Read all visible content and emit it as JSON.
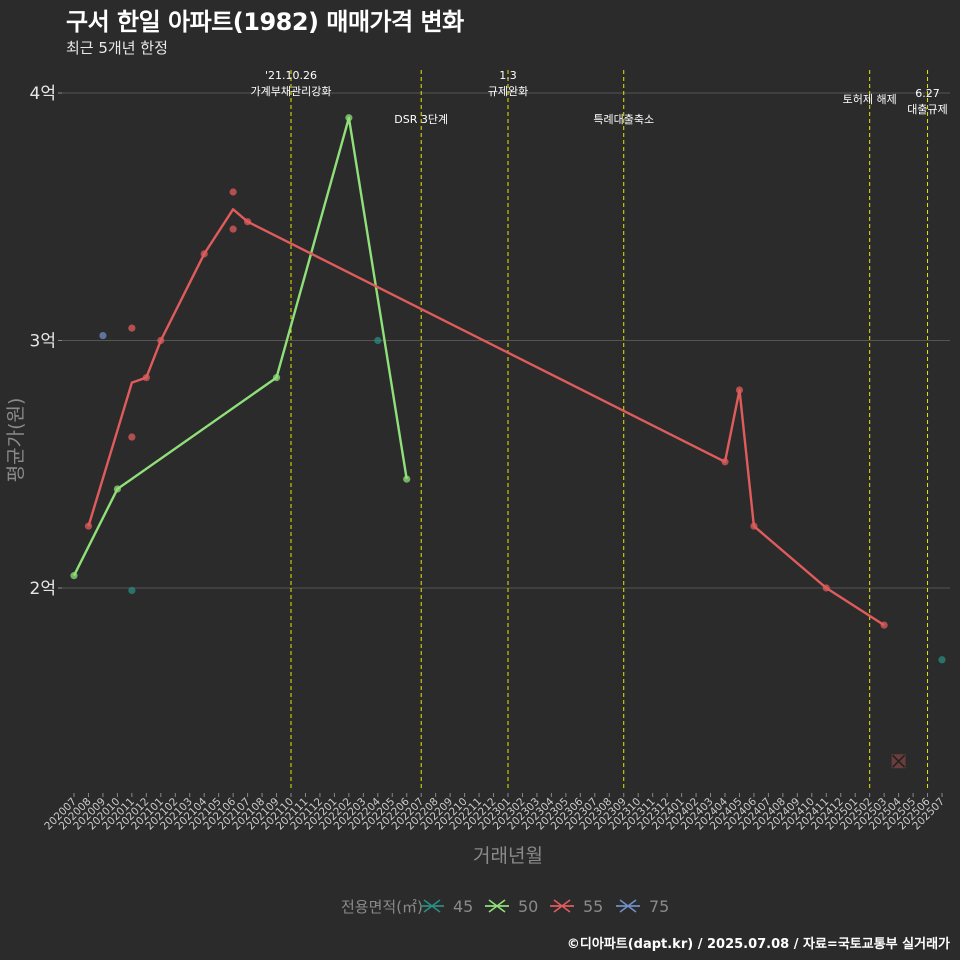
{
  "title": "구서 한일 아파트(1982) 매매가격 변화",
  "subtitle": "최근 5개년 한정",
  "caption": "©디아파트(dapt.kr) / 2025.07.08 / 자료=국토교통부 실거래가",
  "chart_data": {
    "type": "line",
    "xlabel": "거래년월",
    "ylabel": "평균가(원)",
    "ylim": [
      1.2,
      4.1
    ],
    "yticks": [
      2,
      3,
      4
    ],
    "ytick_labels": [
      "2억",
      "3억",
      "4억"
    ],
    "categories": [
      "202007",
      "202008",
      "202009",
      "202010",
      "202011",
      "202012",
      "202101",
      "202102",
      "202103",
      "202104",
      "202105",
      "202106",
      "202107",
      "202108",
      "202109",
      "202110",
      "202111",
      "202112",
      "202201",
      "202202",
      "202203",
      "202204",
      "202205",
      "202206",
      "202207",
      "202208",
      "202209",
      "202210",
      "202211",
      "202212",
      "202301",
      "202302",
      "202303",
      "202304",
      "202305",
      "202306",
      "202307",
      "202308",
      "202309",
      "202310",
      "202311",
      "202312",
      "202401",
      "202402",
      "202403",
      "202404",
      "202405",
      "202406",
      "202407",
      "202408",
      "202409",
      "202410",
      "202411",
      "202412",
      "202501",
      "202502",
      "202503",
      "202504",
      "202505",
      "202506",
      "202507"
    ],
    "events": [
      {
        "x": "202110",
        "label": "'21.10.26\n가계부채관리강화",
        "label_row": 1
      },
      {
        "x": "202207",
        "label": "DSR 3단계",
        "label_row": 2
      },
      {
        "x": "202301",
        "label": "1.3\n규제완화",
        "label_row": 1
      },
      {
        "x": "202309",
        "label": "특례대출축소",
        "label_row": 2
      },
      {
        "x": "202502",
        "label": "토허제 해제",
        "label_row": 1.5
      },
      {
        "x": "202506",
        "label": "6.27\n대출규제",
        "label_row": 3
      }
    ],
    "legend_title": "전용면적(㎡)",
    "series": [
      {
        "name": "45",
        "color": "#2a8c82",
        "line": [],
        "points": [
          [
            "202011",
            1.99
          ],
          [
            "202204",
            3.0
          ],
          [
            "202507",
            1.71
          ]
        ]
      },
      {
        "name": "50",
        "color": "#90e07a",
        "line": [
          [
            "202007",
            2.05
          ],
          [
            "202010",
            2.4
          ],
          [
            "202109",
            2.85
          ],
          [
            "202202",
            3.9
          ],
          [
            "202206",
            2.44
          ]
        ],
        "points": [
          [
            "202007",
            2.05
          ],
          [
            "202010",
            2.4
          ],
          [
            "202109",
            2.85
          ],
          [
            "202202",
            3.9
          ],
          [
            "202206",
            2.44
          ]
        ]
      },
      {
        "name": "55",
        "color": "#e05c5c",
        "line": [
          [
            "202008",
            2.25
          ],
          [
            "202011",
            2.83
          ],
          [
            "202012",
            2.85
          ],
          [
            "202101",
            3.0
          ],
          [
            "202104",
            3.35
          ],
          [
            "202106",
            3.53
          ],
          [
            "202107",
            3.48
          ],
          [
            "202404",
            2.51
          ],
          [
            "202405",
            2.8
          ],
          [
            "202406",
            2.25
          ],
          [
            "202411",
            2.0
          ],
          [
            "202503",
            1.85
          ]
        ],
        "points": [
          [
            "202008",
            2.25
          ],
          [
            "202011",
            2.61
          ],
          [
            "202011",
            3.05
          ],
          [
            "202012",
            2.85
          ],
          [
            "202101",
            3.0
          ],
          [
            "202104",
            3.35
          ],
          [
            "202106",
            3.6
          ],
          [
            "202106",
            3.45
          ],
          [
            "202107",
            3.48
          ],
          [
            "202404",
            2.51
          ],
          [
            "202405",
            2.8
          ],
          [
            "202406",
            2.25
          ],
          [
            "202411",
            2.0
          ],
          [
            "202503",
            1.85
          ]
        ],
        "cross_marks": [
          [
            "202504",
            1.3
          ]
        ]
      },
      {
        "name": "75",
        "color": "#6f8fc4",
        "line": [],
        "points": [
          [
            "202009",
            3.02
          ]
        ]
      }
    ]
  }
}
